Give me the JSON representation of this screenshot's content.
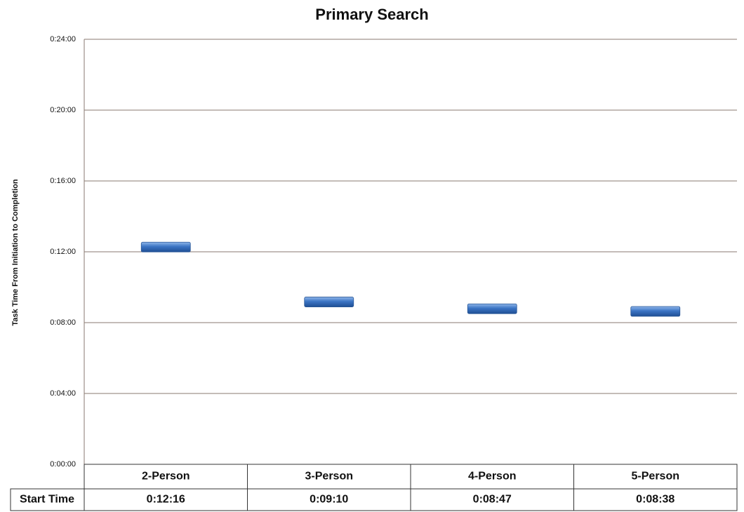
{
  "chart_data": {
    "type": "marker",
    "title": "Primary Search",
    "y_label": "Task Time From Initiation to Completion",
    "categories": [
      "2-Person",
      "3-Person",
      "4-Person",
      "5-Person"
    ],
    "values": [
      12.266667,
      9.166667,
      8.783333,
      8.633333
    ],
    "value_labels": [
      "0:12:16",
      "0:09:10",
      "0:08:47",
      "0:08:38"
    ],
    "table_row_label": "Start Time",
    "color": "#3b74c4",
    "ylim": [
      0,
      24
    ],
    "yticks": [
      {
        "value": 0,
        "label": "0:00:00"
      },
      {
        "value": 4,
        "label": "0:04:00"
      },
      {
        "value": 8,
        "label": "0:08:00"
      },
      {
        "value": 12,
        "label": "0:12:00"
      },
      {
        "value": 16,
        "label": "0:16:00"
      },
      {
        "value": 20,
        "label": "0:20:00"
      },
      {
        "value": 24,
        "label": "0:24:00"
      }
    ],
    "grid": true
  }
}
